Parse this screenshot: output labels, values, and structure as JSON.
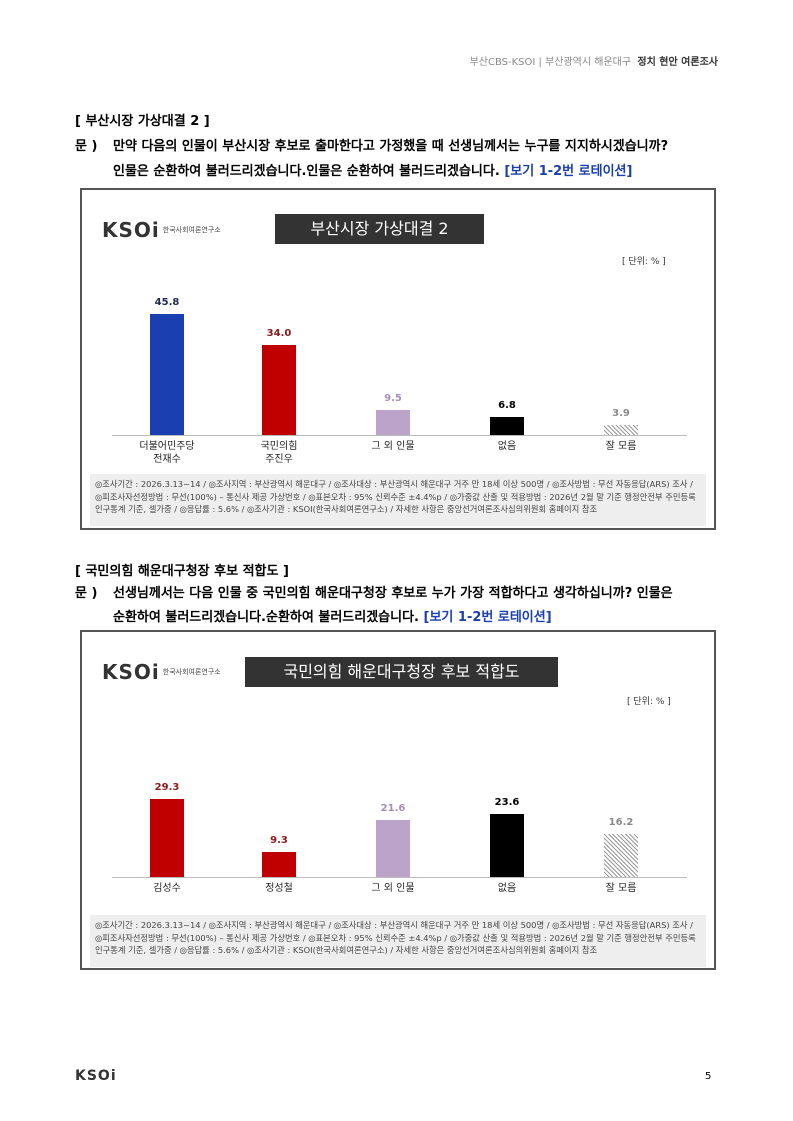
{
  "header": {
    "left": "부산CBS-KSOI | 부산광역시 해운대구",
    "right": "정치 현안 여론조사"
  },
  "sections": [
    {
      "heading": "[ 부산시장 가상대결 2 ]",
      "question_label": "문 )",
      "question_lines": [
        "만약 다음의 인물이 부산시장 후보로 출마한다고 가정했을 때 선생님께서는 누구를 지지하시겠습니까?",
        "인물은 순환하여 불러드리겠습니다."
      ],
      "question_note": "[보기 1-2번 로테이션]",
      "chart_data": {
        "type": "bar",
        "logo": "KSOi",
        "logo_sub": "한국사회여론연구소",
        "title": "부산시장 가상대결 2",
        "unit": "[ 단위: % ]",
        "categories": [
          "더불어민주당\n전재수",
          "국민의힘\n주진우",
          "그 외 인물",
          "없음",
          "잘 모름"
        ],
        "values": [
          45.8,
          34.0,
          9.5,
          6.8,
          3.9
        ],
        "value_labels": [
          "45.8",
          "34.0",
          "9.5",
          "6.8",
          "3.9"
        ],
        "colors": [
          "#1a3fb0",
          "#c00000",
          "#bba3c9",
          "#000000",
          "#9a9a9a"
        ],
        "label_colors": [
          "#1f2a4f",
          "#8b1a1a",
          "#a58fb5",
          "#000000",
          "#8a8a8a"
        ],
        "hatch": [
          false,
          false,
          false,
          false,
          true
        ],
        "note": "◎조사기간 : 2026.3.13~14 / ◎조사지역 : 부산광역시 해운대구 / ◎조사대상 : 부산광역시 해운대구 거주 만 18세 이상 500명 / ◎조사방법 : 무선 자동응답(ARS) 조사 / ◎피조사자선정방법 : 무선(100%) – 통신사 제공 가상번호 / ◎표본오차 : 95% 신뢰수준 ±4.4%p / ◎가중값 산출 및 적용방법 : 2026년 2월 말 기준 행정안전부 주민등록 인구통계 기준, 셀가중 / ◎응답률 : 5.6% / ◎조사기관 : KSOI(한국사회여론연구소) / 자세한 사항은 중앙선거여론조사심의위원회 홈페이지 참조"
      }
    },
    {
      "heading": "[ 국민의힘 해운대구청장 후보 적합도 ]",
      "question_label": "문 )",
      "question_lines": [
        "선생님께서는 다음 인물 중 국민의힘 해운대구청장 후보로 누가 가장 적합하다고 생각하십니까? 인물은",
        "순환하여 불러드리겠습니다."
      ],
      "question_note": "[보기 1-2번 로테이션]",
      "chart_data": {
        "type": "bar",
        "logo": "KSOi",
        "logo_sub": "한국사회여론연구소",
        "title": "국민의힘 해운대구청장 후보 적합도",
        "unit": "[ 단위: % ]",
        "categories": [
          "김성수",
          "정성철",
          "그 외 인물",
          "없음",
          "잘 모름"
        ],
        "values": [
          29.3,
          9.3,
          21.6,
          23.6,
          16.2
        ],
        "value_labels": [
          "29.3",
          "9.3",
          "21.6",
          "23.6",
          "16.2"
        ],
        "colors": [
          "#c00000",
          "#c00000",
          "#bba3c9",
          "#000000",
          "#9a9a9a"
        ],
        "label_colors": [
          "#8b1a1a",
          "#8b1a1a",
          "#a58fb5",
          "#000000",
          "#8a8a8a"
        ],
        "hatch": [
          false,
          false,
          false,
          false,
          true
        ],
        "note": "◎조사기간 : 2026.3.13~14 / ◎조사지역 : 부산광역시 해운대구 / ◎조사대상 : 부산광역시 해운대구 거주 만 18세 이상 500명 / ◎조사방법 : 무선 자동응답(ARS) 조사 / ◎피조사자선정방법 : 무선(100%) – 통신사 제공 가상번호 / ◎표본오차 : 95% 신뢰수준 ±4.4%p / ◎가중값 산출 및 적용방법 : 2026년 2월 말 기준 행정안전부 주민등록 인구통계 기준, 셀가중 / ◎응답률 : 5.6% / ◎조사기관 : KSOI(한국사회여론연구소) / 자세한 사항은 중앙선거여론조사심의위원회 홈페이지 참조"
      }
    }
  ],
  "footer": {
    "logo": "KSOi",
    "page": "5"
  }
}
